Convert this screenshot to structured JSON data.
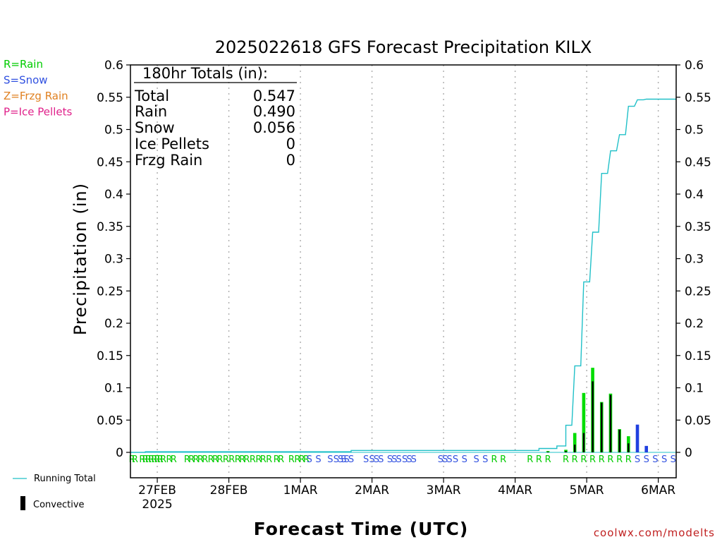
{
  "chart_data": {
    "type": "bar",
    "title": "2025022618 GFS Forecast Precipitation KILX",
    "xlabel": "Forecast Time (UTC)",
    "ylabel": "Precipitation (in)",
    "ylim": [
      0,
      0.6
    ],
    "y_ticks": [
      0,
      0.05,
      0.1,
      0.15,
      0.2,
      0.25,
      0.3,
      0.35,
      0.4,
      0.45,
      0.5,
      0.55,
      0.6
    ],
    "y_tick_labels": [
      "0",
      "0.05",
      "0.1",
      "0.15",
      "0.2",
      "0.25",
      "0.3",
      "0.35",
      "0.4",
      "0.45",
      "0.5",
      "0.55",
      "0.6"
    ],
    "x_range_hours": [
      -3,
      180
    ],
    "x_ticks": [
      {
        "hours": 6,
        "label": "27FEB",
        "sublabel": "2025"
      },
      {
        "hours": 30,
        "label": "28FEB",
        "sublabel": ""
      },
      {
        "hours": 54,
        "label": "1MAR",
        "sublabel": ""
      },
      {
        "hours": 78,
        "label": "2MAR",
        "sublabel": ""
      },
      {
        "hours": 102,
        "label": "3MAR",
        "sublabel": ""
      },
      {
        "hours": 126,
        "label": "4MAR",
        "sublabel": ""
      },
      {
        "hours": 150,
        "label": "5MAR",
        "sublabel": ""
      },
      {
        "hours": 174,
        "label": "6MAR",
        "sublabel": ""
      }
    ],
    "grid": "vertical dotted at day boundaries",
    "type_legend": [
      {
        "code": "R",
        "text": "R=Rain",
        "color": "#00cc00"
      },
      {
        "code": "S",
        "text": "S=Snow",
        "color": "#3050e0"
      },
      {
        "code": "Z",
        "text": "Z=Frzg Rain",
        "color": "#e08020"
      },
      {
        "code": "P",
        "text": "P=Ice Pellets",
        "color": "#e0208a"
      }
    ],
    "series_legend": [
      {
        "name": "Running Total",
        "color": "#20c0c8",
        "kind": "line"
      },
      {
        "name": "Convective",
        "color": "#000000",
        "kind": "bar"
      }
    ],
    "totals": {
      "header": "180hr Totals (in):",
      "rows": [
        {
          "label": "Total",
          "value": "0.547"
        },
        {
          "label": "Rain",
          "value": "0.490"
        },
        {
          "label": "Snow",
          "value": "0.056"
        },
        {
          "label": "Ice Pellets",
          "value": "0"
        },
        {
          "label": "Frzg Rain",
          "value": "0"
        }
      ]
    },
    "bars": [
      {
        "hour": 137,
        "total": 0.002,
        "convective": 0.001,
        "type": "R"
      },
      {
        "hour": 143,
        "total": 0.004,
        "convective": 0.002,
        "type": "R"
      },
      {
        "hour": 146,
        "total": 0.03,
        "convective": 0.012,
        "type": "R"
      },
      {
        "hour": 149,
        "total": 0.092,
        "convective": 0.03,
        "type": "R"
      },
      {
        "hour": 152,
        "total": 0.131,
        "convective": 0.11,
        "type": "R"
      },
      {
        "hour": 155,
        "total": 0.078,
        "convective": 0.077,
        "type": "R"
      },
      {
        "hour": 158,
        "total": 0.091,
        "convective": 0.089,
        "type": "R"
      },
      {
        "hour": 161,
        "total": 0.036,
        "convective": 0.035,
        "type": "R"
      },
      {
        "hour": 164,
        "total": 0.025,
        "convective": 0.014,
        "type": "R"
      },
      {
        "hour": 167,
        "total": 0.043,
        "convective": 0.0,
        "type": "S"
      },
      {
        "hour": 170,
        "total": 0.01,
        "convective": 0.0,
        "type": "S"
      }
    ],
    "running_total": [
      {
        "hour": -3,
        "value": 0.0
      },
      {
        "hour": 2,
        "value": 0.0
      },
      {
        "hour": 2,
        "value": 0.001
      },
      {
        "hour": 71,
        "value": 0.001
      },
      {
        "hour": 71,
        "value": 0.003
      },
      {
        "hour": 134,
        "value": 0.003
      },
      {
        "hour": 134,
        "value": 0.006
      },
      {
        "hour": 140,
        "value": 0.006
      },
      {
        "hour": 140,
        "value": 0.01
      },
      {
        "hour": 143,
        "value": 0.01
      },
      {
        "hour": 143,
        "value": 0.042
      },
      {
        "hour": 145,
        "value": 0.042
      },
      {
        "hour": 146,
        "value": 0.134
      },
      {
        "hour": 148,
        "value": 0.134
      },
      {
        "hour": 149,
        "value": 0.264
      },
      {
        "hour": 151,
        "value": 0.264
      },
      {
        "hour": 152,
        "value": 0.341
      },
      {
        "hour": 154,
        "value": 0.341
      },
      {
        "hour": 155,
        "value": 0.432
      },
      {
        "hour": 157,
        "value": 0.432
      },
      {
        "hour": 158,
        "value": 0.467
      },
      {
        "hour": 160,
        "value": 0.467
      },
      {
        "hour": 161,
        "value": 0.492
      },
      {
        "hour": 163,
        "value": 0.492
      },
      {
        "hour": 164,
        "value": 0.536
      },
      {
        "hour": 166,
        "value": 0.536
      },
      {
        "hour": 167,
        "value": 0.546
      },
      {
        "hour": 169,
        "value": 0.546
      },
      {
        "hour": 170,
        "value": 0.547
      },
      {
        "hour": 180,
        "value": 0.547
      }
    ],
    "precip_type_markers": [
      {
        "hour": -2.5,
        "code": "R"
      },
      {
        "hour": -1.5,
        "code": "R"
      },
      {
        "hour": 1,
        "code": "R"
      },
      {
        "hour": 2,
        "code": "R"
      },
      {
        "hour": 3,
        "code": "R"
      },
      {
        "hour": 4,
        "code": "R"
      },
      {
        "hour": 5,
        "code": "R"
      },
      {
        "hour": 6,
        "code": "R"
      },
      {
        "hour": 7,
        "code": "R"
      },
      {
        "hour": 8,
        "code": "R"
      },
      {
        "hour": 10,
        "code": "R"
      },
      {
        "hour": 11.5,
        "code": "R"
      },
      {
        "hour": 16,
        "code": "R"
      },
      {
        "hour": 17.5,
        "code": "R"
      },
      {
        "hour": 19,
        "code": "R"
      },
      {
        "hour": 20.5,
        "code": "R"
      },
      {
        "hour": 22,
        "code": "R"
      },
      {
        "hour": 24,
        "code": "R"
      },
      {
        "hour": 25.5,
        "code": "R"
      },
      {
        "hour": 27,
        "code": "R"
      },
      {
        "hour": 29,
        "code": "R"
      },
      {
        "hour": 31,
        "code": "R"
      },
      {
        "hour": 33,
        "code": "R"
      },
      {
        "hour": 34.5,
        "code": "R"
      },
      {
        "hour": 36,
        "code": "R"
      },
      {
        "hour": 38,
        "code": "R"
      },
      {
        "hour": 40,
        "code": "R"
      },
      {
        "hour": 41.5,
        "code": "R"
      },
      {
        "hour": 43.5,
        "code": "R"
      },
      {
        "hour": 46,
        "code": "R"
      },
      {
        "hour": 47.5,
        "code": "R"
      },
      {
        "hour": 51,
        "code": "R"
      },
      {
        "hour": 53,
        "code": "R"
      },
      {
        "hour": 54.5,
        "code": "R"
      },
      {
        "hour": 56,
        "code": "R"
      },
      {
        "hour": 57,
        "code": "S"
      },
      {
        "hour": 60,
        "code": "S"
      },
      {
        "hour": 64,
        "code": "S"
      },
      {
        "hour": 66,
        "code": "S"
      },
      {
        "hour": 67.5,
        "code": "S"
      },
      {
        "hour": 68.5,
        "code": "S"
      },
      {
        "hour": 69.5,
        "code": "S"
      },
      {
        "hour": 71,
        "code": "S"
      },
      {
        "hour": 76,
        "code": "S"
      },
      {
        "hour": 78,
        "code": "S"
      },
      {
        "hour": 79.5,
        "code": "S"
      },
      {
        "hour": 81,
        "code": "S"
      },
      {
        "hour": 84,
        "code": "S"
      },
      {
        "hour": 85.5,
        "code": "S"
      },
      {
        "hour": 87,
        "code": "S"
      },
      {
        "hour": 89,
        "code": "S"
      },
      {
        "hour": 90.5,
        "code": "S"
      },
      {
        "hour": 92,
        "code": "S"
      },
      {
        "hour": 101,
        "code": "S"
      },
      {
        "hour": 102.5,
        "code": "S"
      },
      {
        "hour": 104,
        "code": "S"
      },
      {
        "hour": 106,
        "code": "S"
      },
      {
        "hour": 109,
        "code": "S"
      },
      {
        "hour": 113,
        "code": "S"
      },
      {
        "hour": 116,
        "code": "S"
      },
      {
        "hour": 119,
        "code": "R"
      },
      {
        "hour": 122,
        "code": "R"
      },
      {
        "hour": 131,
        "code": "R"
      },
      {
        "hour": 134,
        "code": "R"
      },
      {
        "hour": 137,
        "code": "R"
      },
      {
        "hour": 143,
        "code": "R"
      },
      {
        "hour": 146,
        "code": "R"
      },
      {
        "hour": 149,
        "code": "R"
      },
      {
        "hour": 152,
        "code": "R"
      },
      {
        "hour": 155,
        "code": "R"
      },
      {
        "hour": 158,
        "code": "R"
      },
      {
        "hour": 161,
        "code": "R"
      },
      {
        "hour": 164,
        "code": "R"
      },
      {
        "hour": 167,
        "code": "S"
      },
      {
        "hour": 170,
        "code": "S"
      },
      {
        "hour": 173,
        "code": "S"
      },
      {
        "hour": 176,
        "code": "S"
      },
      {
        "hour": 179,
        "code": "S"
      }
    ],
    "colors": {
      "rain_bar": "#00dd00",
      "snow_bar": "#2040e0",
      "convective_bar": "#000000",
      "running_total": "#20c0c8",
      "grid": "#b0b0b0",
      "rain_text": "#00cc00",
      "snow_text": "#3050e0",
      "frzg_text": "#e08020",
      "ice_text": "#e0208a"
    }
  },
  "footer": {
    "site": "coolwx.com/modelts"
  }
}
